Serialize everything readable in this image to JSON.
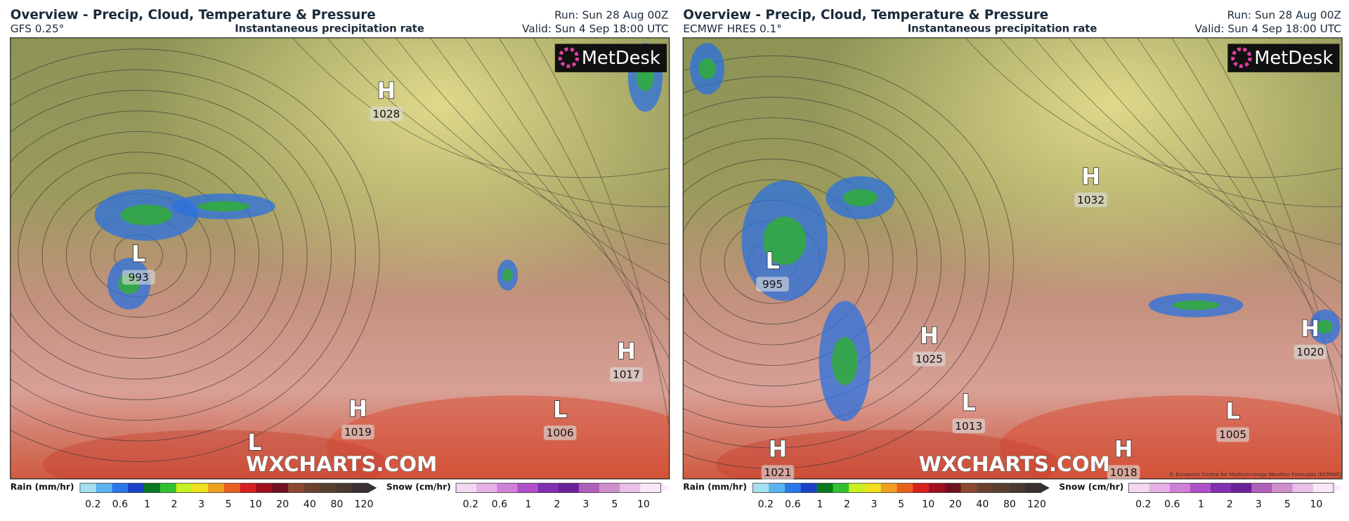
{
  "panels": [
    {
      "title": "Overview - Precip, Cloud, Temperature & Pressure",
      "model": "GFS 0.25°",
      "product": "Instantaneous precipitation rate",
      "run": "Run: Sun 28 Aug 00Z",
      "valid": "Valid: Sun 4 Sep 18:00 UTC",
      "logo": "MetDesk",
      "watermark": "WXCHARTS.COM",
      "systems": [
        {
          "type": "H",
          "value": 1028
        },
        {
          "type": "L",
          "value": 993
        },
        {
          "type": "H",
          "value": 1017
        },
        {
          "type": "L",
          "value": 1006
        },
        {
          "type": "H",
          "value": 1019
        },
        {
          "type": "L"
        }
      ],
      "rain_legend": {
        "label": "Rain (mm/hr)",
        "ticks": [
          0.2,
          0.6,
          1,
          2,
          3,
          5,
          10,
          20,
          40,
          80,
          120
        ]
      },
      "snow_legend": {
        "label": "Snow (cm/hr)",
        "ticks": [
          0.2,
          0.6,
          1,
          2,
          3,
          5,
          10
        ]
      }
    },
    {
      "title": "Overview - Precip, Cloud, Temperature & Pressure",
      "model": "ECMWF HRES 0.1°",
      "product": "Instantaneous precipitation rate",
      "run": "Run: Sun 28 Aug 00Z",
      "valid": "Valid: Sun 4 Sep 18:00 UTC",
      "logo": "MetDesk",
      "watermark": "WXCHARTS.COM",
      "credit": "© European Centre for Medium-range Weather Forecasts (ECMWF)",
      "systems": [
        {
          "type": "L",
          "value": 995
        },
        {
          "type": "H",
          "value": 1032
        },
        {
          "type": "H",
          "value": 1025
        },
        {
          "type": "L",
          "value": 1013
        },
        {
          "type": "H",
          "value": 1021
        },
        {
          "type": "H",
          "value": 1018
        },
        {
          "type": "H",
          "value": 1020
        },
        {
          "type": "L",
          "value": 1005
        }
      ],
      "rain_legend": {
        "label": "Rain (mm/hr)",
        "ticks": [
          0.2,
          0.6,
          1,
          2,
          3,
          5,
          10,
          20,
          40,
          80,
          120
        ]
      },
      "snow_legend": {
        "label": "Snow (cm/hr)",
        "ticks": [
          0.2,
          0.6,
          1,
          2,
          3,
          5,
          10
        ]
      }
    }
  ]
}
